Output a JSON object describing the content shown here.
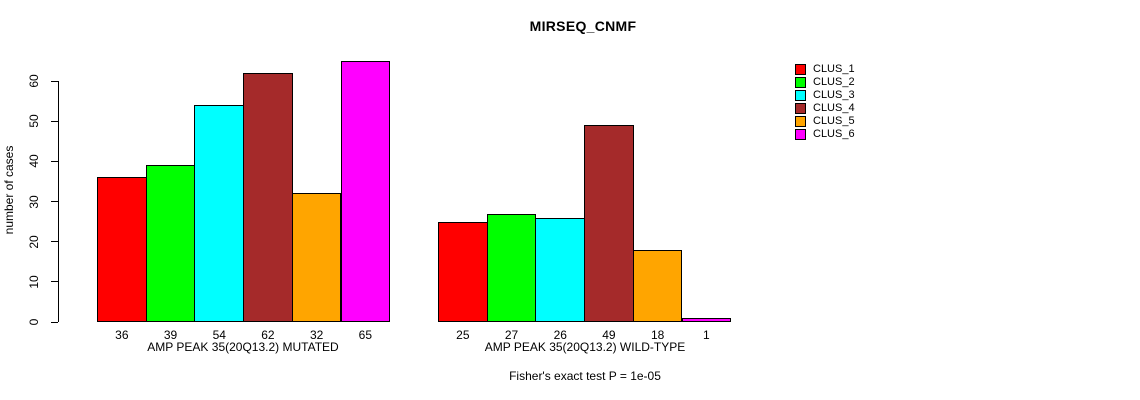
{
  "chart_data": {
    "type": "bar",
    "title": "MIRSEQ_CNMF",
    "ylabel": "number of cases",
    "ylim": [
      0,
      60
    ],
    "yticks": [
      0,
      10,
      20,
      30,
      40,
      50,
      60
    ],
    "grid": false,
    "legend_position": "right",
    "legend": [
      {
        "name": "CLUS_1",
        "color": "#FF0000"
      },
      {
        "name": "CLUS_2",
        "color": "#00FF00"
      },
      {
        "name": "CLUS_3",
        "color": "#00FFFF"
      },
      {
        "name": "CLUS_4",
        "color": "#A52A2A"
      },
      {
        "name": "CLUS_5",
        "color": "#FFA500"
      },
      {
        "name": "CLUS_6",
        "color": "#FF00FF"
      }
    ],
    "series_colors": [
      "#FF0000",
      "#00FF00",
      "#00FFFF",
      "#A52A2A",
      "#FFA500",
      "#FF00FF"
    ],
    "groups": [
      {
        "label": "AMP PEAK 35(20Q13.2) MUTATED",
        "values": [
          36,
          39,
          54,
          62,
          32,
          65
        ]
      },
      {
        "label": "AMP PEAK 35(20Q13.2) WILD-TYPE",
        "values": [
          25,
          27,
          26,
          49,
          18,
          1
        ]
      }
    ],
    "caption": "Fisher's exact test P = 1e-05"
  }
}
